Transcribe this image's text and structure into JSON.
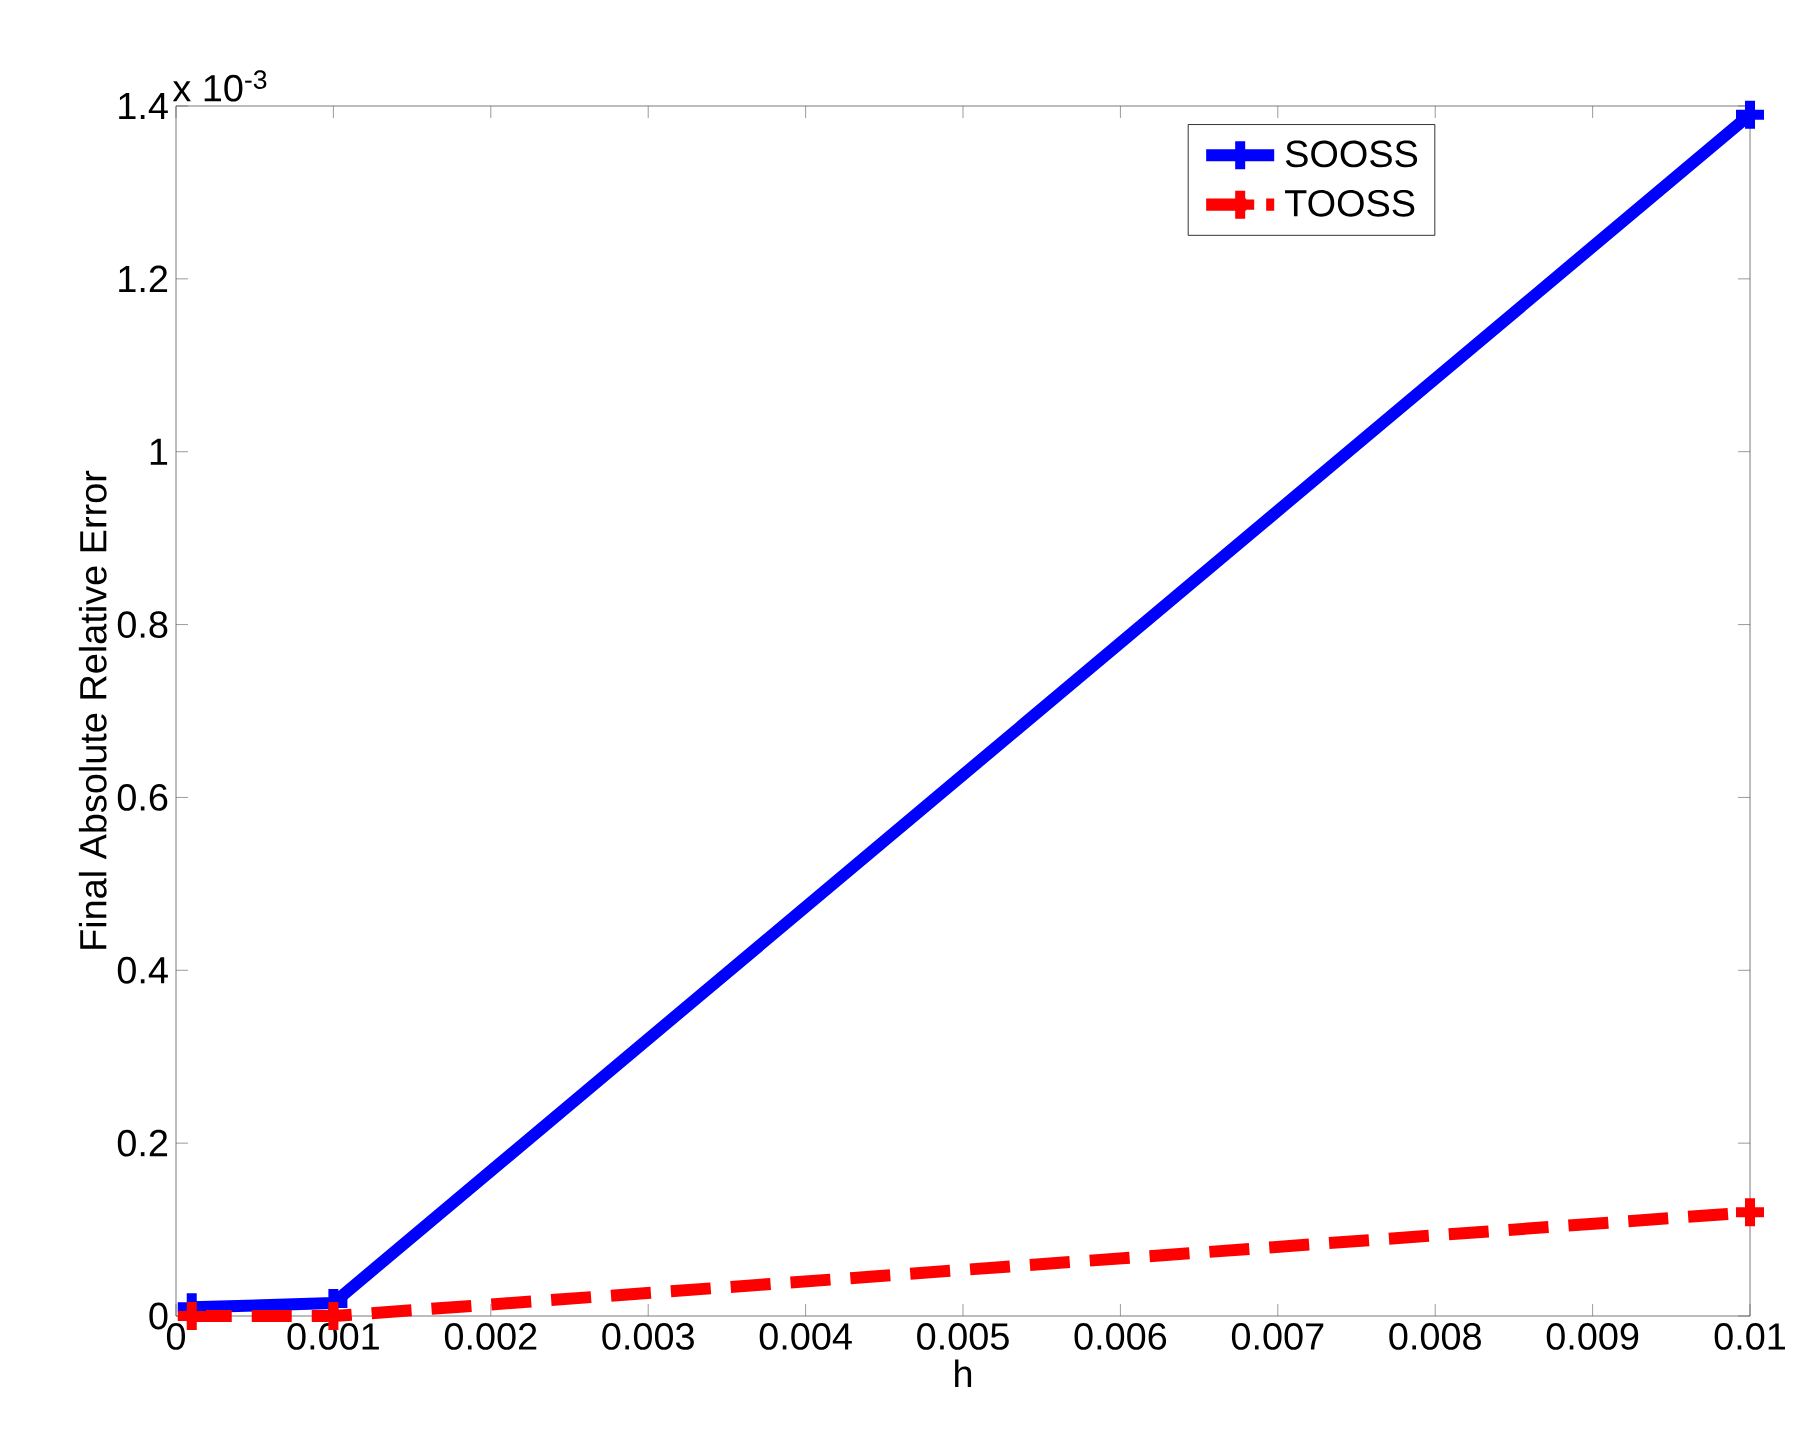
{
  "chart_data": {
    "type": "line",
    "xlabel": "h",
    "ylabel": "Final Absolute Relative Error",
    "x": [
      0.0001,
      0.001,
      0.01
    ],
    "series": [
      {
        "name": "SOOSS",
        "color": "#0000ff",
        "line_style": "solid",
        "values": [
          0.01,
          0.015,
          1.39
        ]
      },
      {
        "name": "TOOSS",
        "color": "#ff0000",
        "line_style": "dashed",
        "values": [
          0,
          0,
          0.12
        ]
      }
    ],
    "xlim": [
      0,
      0.01
    ],
    "ylim": [
      0,
      1.4
    ],
    "xticks": [
      0,
      0.001,
      0.002,
      0.003,
      0.004,
      0.005,
      0.006,
      0.007,
      0.008,
      0.009,
      0.01
    ],
    "yticks": [
      0,
      0.2,
      0.4,
      0.6,
      0.8,
      1,
      1.2,
      1.4
    ],
    "annotations": [
      "x 10$^{-3}$"
    ],
    "marker": "cross",
    "legend": "top right"
  }
}
